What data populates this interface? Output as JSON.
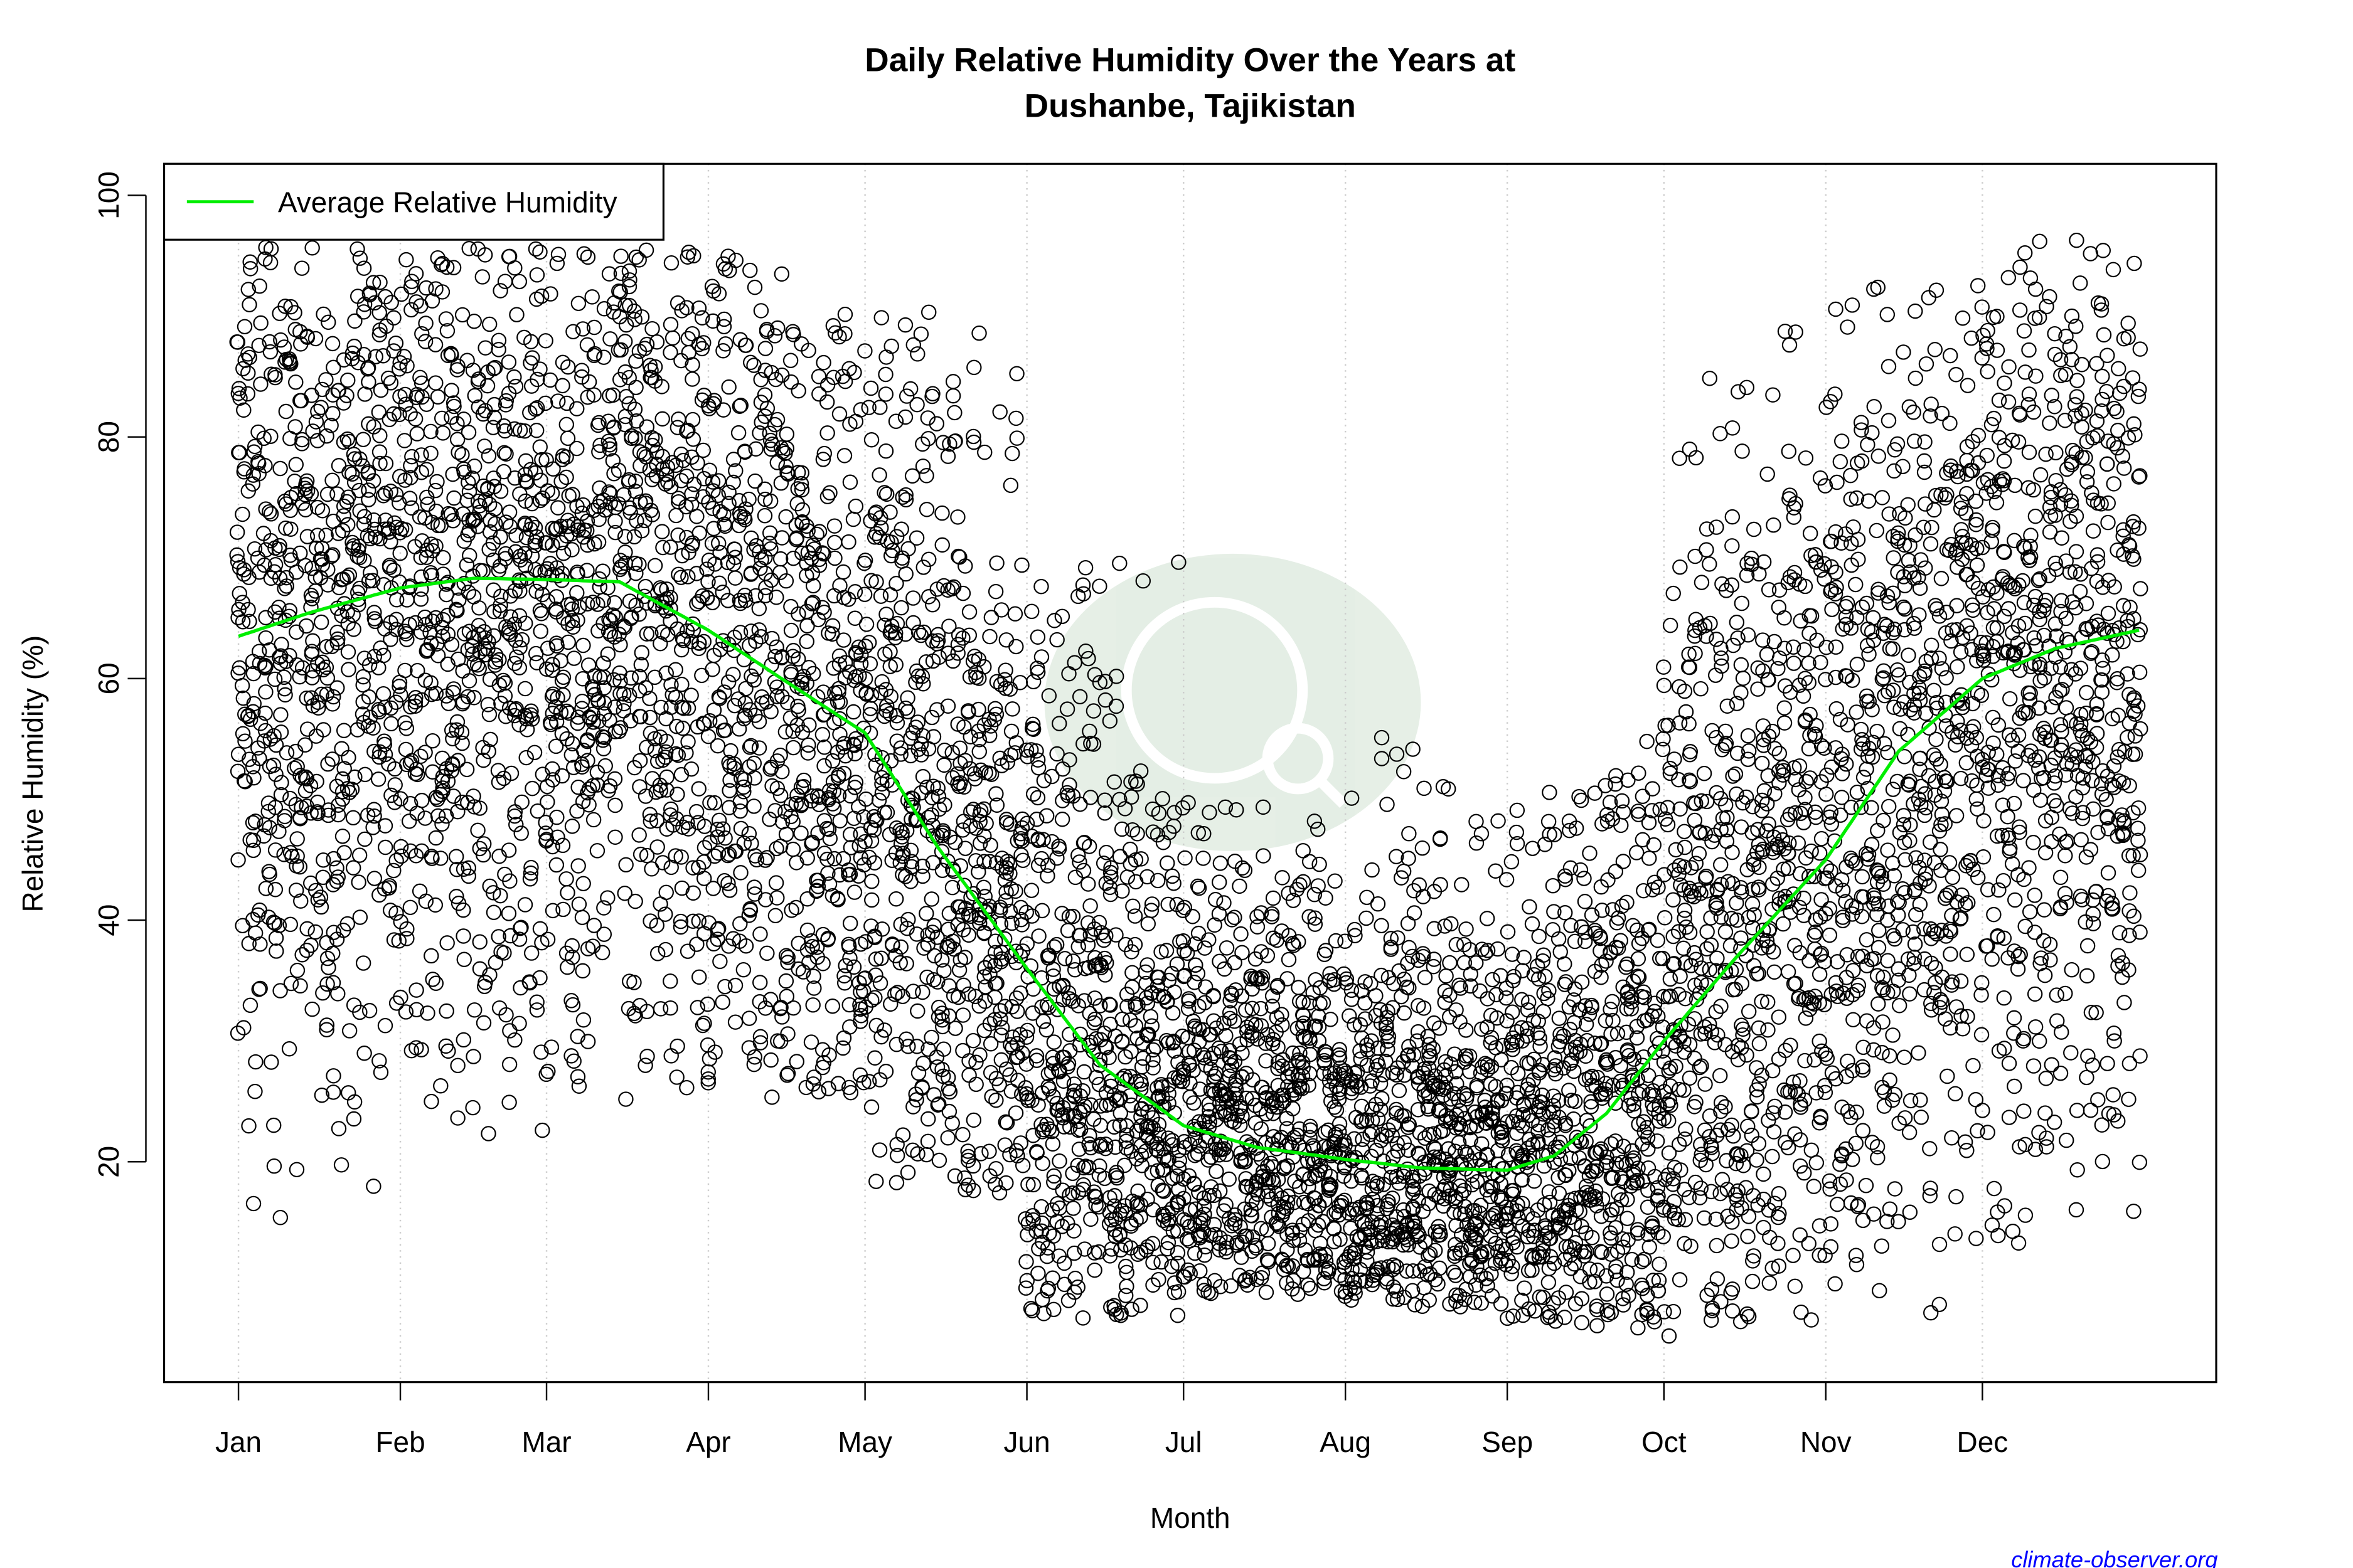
{
  "chart_data": {
    "type": "scatter",
    "title": "Daily Relative Humidity Over the Years at",
    "subtitle": "Dushanbe, Tajikistan",
    "xlabel": "Month",
    "ylabel": "Relative Humidity  (%)",
    "x_ticks": [
      "Jan",
      "Feb",
      "Mar",
      "Apr",
      "May",
      "Jun",
      "Jul",
      "Aug",
      "Sep",
      "Oct",
      "Nov",
      "Dec"
    ],
    "y_ticks": [
      20,
      40,
      60,
      80,
      100
    ],
    "ylim": [
      3,
      102
    ],
    "grid": "vertical dotted at month ticks",
    "legend": {
      "placement": "top-left",
      "entries": [
        {
          "name": "Average Relative Humidity",
          "color": "#00ee00"
        }
      ]
    },
    "series": [
      {
        "name": "Average Relative Humidity",
        "type": "line",
        "color": "#00ee00",
        "points": [
          [
            "Jan 1",
            63.5
          ],
          [
            "Jan 15",
            65.5
          ],
          [
            "Feb 1",
            67.5
          ],
          [
            "Feb 15",
            68.3
          ],
          [
            "Mar 1",
            68.2
          ],
          [
            "Mar 15",
            68.0
          ],
          [
            "Apr 1",
            64.0
          ],
          [
            "Apr 15",
            60.0
          ],
          [
            "May 1",
            55.5
          ],
          [
            "May 15",
            46.0
          ],
          [
            "Jun 1",
            36.0
          ],
          [
            "Jun 15",
            28.0
          ],
          [
            "Jul 1",
            23.0
          ],
          [
            "Jul 15",
            21.2
          ],
          [
            "Aug 1",
            20.2
          ],
          [
            "Aug 15",
            19.5
          ],
          [
            "Sep 1",
            19.3
          ],
          [
            "Sep 10",
            20.5
          ],
          [
            "Sep 20",
            24.0
          ],
          [
            "Oct 1",
            30.0
          ],
          [
            "Oct 15",
            37.0
          ],
          [
            "Nov 1",
            45.0
          ],
          [
            "Nov 15",
            54.0
          ],
          [
            "Dec 1",
            60.0
          ],
          [
            "Dec 15",
            62.5
          ],
          [
            "Dec 31",
            64.0
          ]
        ]
      },
      {
        "name": "",
        "type": "scatter",
        "marker": "open circle",
        "color": "#000000",
        "observed_range_by_month": {
          "Jan": [
            15,
            96
          ],
          "Feb": [
            22,
            96
          ],
          "Mar": [
            25,
            96
          ],
          "Apr": [
            25,
            95
          ],
          "May": [
            17,
            92
          ],
          "Jun": [
            7,
            71
          ],
          "Jul": [
            9,
            50
          ],
          "Aug": [
            8,
            56
          ],
          "Sep": [
            6,
            55
          ],
          "Oct": [
            5,
            90
          ],
          "Nov": [
            7,
            93
          ],
          "Dec": [
            12,
            97
          ]
        }
      }
    ]
  },
  "watermark": "climate-observer",
  "credit": "climate-observer.org",
  "colors": {
    "average_line": "#00ee00",
    "credit": "#0000ff",
    "points": "#000000"
  }
}
